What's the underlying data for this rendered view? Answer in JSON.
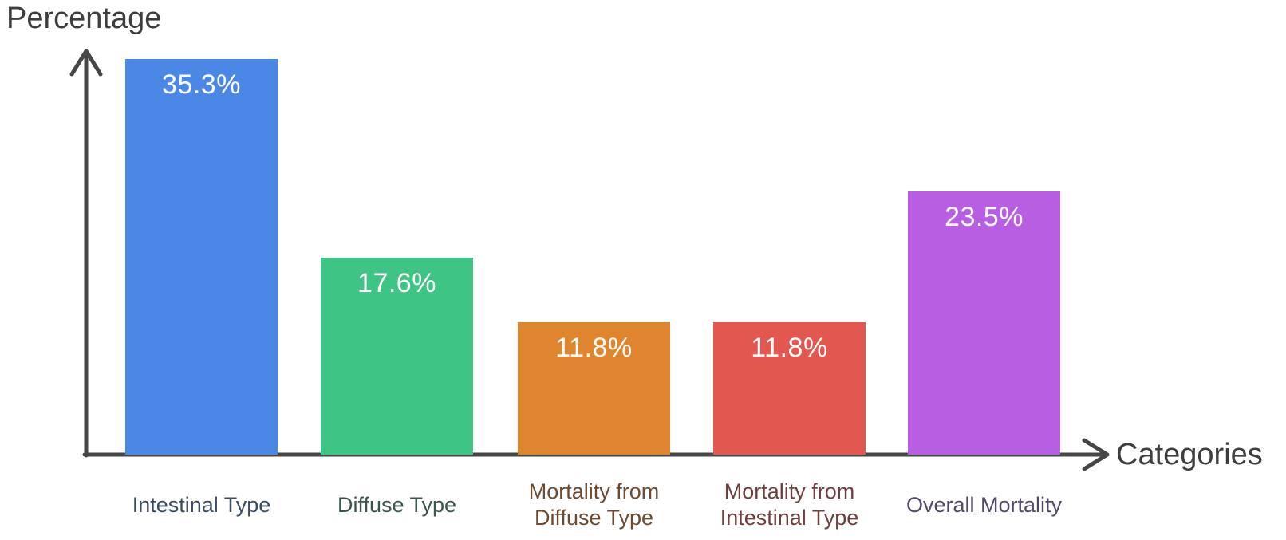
{
  "chart_data": {
    "type": "bar",
    "title": "",
    "xlabel": "Categories",
    "ylabel": "Percentage",
    "categories": [
      "Intestinal Type",
      "Diffuse Type",
      "Mortality from\nDiffuse Type",
      "Mortality from\nIntestinal Type",
      "Overall Mortality"
    ],
    "values": [
      35.3,
      17.6,
      11.8,
      11.8,
      23.5
    ],
    "value_labels": [
      "35.3%",
      "17.6%",
      "11.8%",
      "11.8%",
      "23.5%"
    ],
    "bar_colors": [
      "#4b87e5",
      "#3ec484",
      "#df8530",
      "#e2574f",
      "#b85ee3"
    ],
    "category_label_colors": [
      "#3c4d63",
      "#3b574d",
      "#6d4a31",
      "#6d3f3d",
      "#554768"
    ],
    "value_label_color": "#ffffff",
    "axis_color": "#464646",
    "background_color": "#ffffff",
    "ylim": [
      0,
      40
    ],
    "grid": false,
    "legend": false
  }
}
